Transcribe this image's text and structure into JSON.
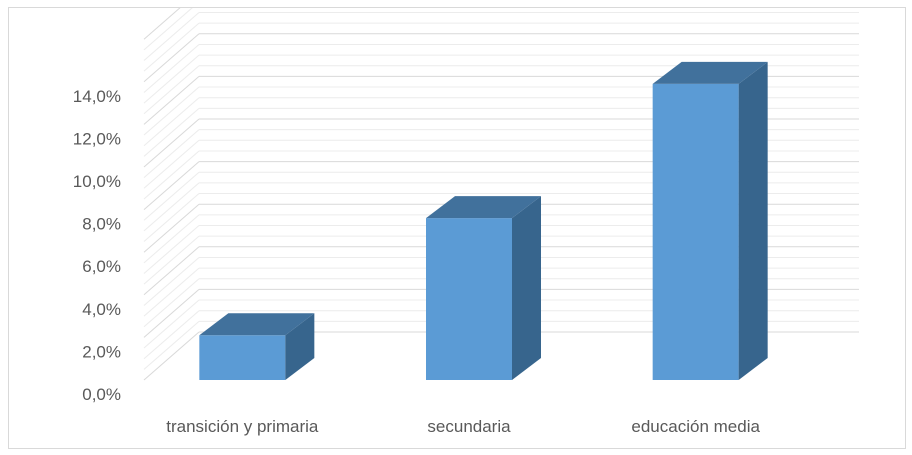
{
  "chart_data": {
    "type": "bar",
    "style": "3d-column",
    "categories": [
      "transición y primaria",
      "secundaria",
      "educación media"
    ],
    "values": [
      2.1,
      7.6,
      13.9
    ],
    "value_unit": "%",
    "ylim": [
      0,
      16
    ],
    "y_ticks": [
      "0,0%",
      "2,0%",
      "4,0%",
      "6,0%",
      "8,0%",
      "10,0%",
      "12,0%",
      "14,0%"
    ],
    "title": "",
    "xlabel": "",
    "ylabel": "",
    "grid": true,
    "legend": "none",
    "colors": {
      "bar_front": "#5b9bd5",
      "bar_side": "#37658d",
      "bar_top": "#41719c",
      "grid": "#d9d9d9",
      "text": "#595959"
    }
  }
}
